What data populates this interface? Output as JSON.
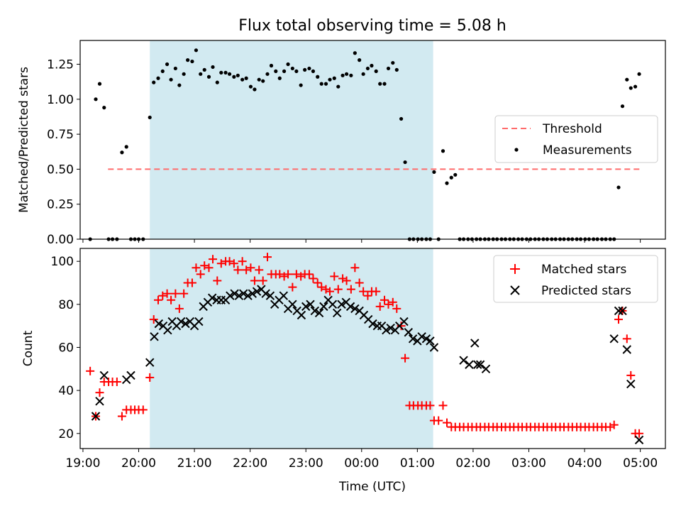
{
  "chart_data": [
    {
      "type": "scatter",
      "title": "Flux total observing time = 5.08 h",
      "xlabel": "",
      "ylabel": "Matched/Predicted stars",
      "ylim": [
        0,
        1.42
      ],
      "xlim": [
        18.95,
        29.45
      ],
      "yticks": [
        0.0,
        0.25,
        0.5,
        0.75,
        1.0,
        1.25
      ],
      "ytick_labels": [
        "0.00",
        "0.25",
        "0.50",
        "0.75",
        "1.00",
        "1.25"
      ],
      "shaded_region": {
        "start": 20.2,
        "end": 25.283,
        "color": "#add8e6"
      },
      "legend": {
        "position": "center-right",
        "entries": [
          "Threshold",
          "Measurements"
        ]
      },
      "threshold": {
        "name": "Threshold",
        "value": 0.5,
        "x_start": 19.45,
        "x_end": 29.0,
        "color": "#ff6b6b"
      },
      "series": [
        {
          "name": "Measurements",
          "color": "#000000",
          "x": [
            19.13,
            19.23,
            19.3,
            19.38,
            19.46,
            19.53,
            19.61,
            19.7,
            19.78,
            19.86,
            19.93,
            20.0,
            20.08,
            20.2,
            20.27,
            20.35,
            20.43,
            20.51,
            20.58,
            20.66,
            20.73,
            20.81,
            20.88,
            20.96,
            21.03,
            21.11,
            21.18,
            21.26,
            21.33,
            21.41,
            21.48,
            21.56,
            21.63,
            21.71,
            21.78,
            21.86,
            21.93,
            22.01,
            22.08,
            22.16,
            22.23,
            22.31,
            22.38,
            22.46,
            22.53,
            22.61,
            22.68,
            22.76,
            22.83,
            22.91,
            22.98,
            23.06,
            23.13,
            23.21,
            23.28,
            23.36,
            23.43,
            23.51,
            23.58,
            23.66,
            23.73,
            23.81,
            23.88,
            23.96,
            24.03,
            24.11,
            24.18,
            24.26,
            24.33,
            24.41,
            24.48,
            24.56,
            24.63,
            24.71,
            24.78,
            24.86,
            24.93,
            25.01,
            25.08,
            25.16,
            25.23,
            25.3,
            25.38,
            25.46,
            25.53,
            25.61,
            25.68,
            25.76,
            25.83,
            25.91,
            25.98,
            26.06,
            26.13,
            26.21,
            26.28,
            26.36,
            26.43,
            26.51,
            26.58,
            26.66,
            26.73,
            26.81,
            26.88,
            26.96,
            27.03,
            27.11,
            27.18,
            27.26,
            27.33,
            27.41,
            27.48,
            27.56,
            27.63,
            27.71,
            27.78,
            27.86,
            27.93,
            28.01,
            28.08,
            28.16,
            28.23,
            28.31,
            28.38,
            28.46,
            28.53,
            28.61,
            28.68,
            28.76,
            28.83,
            28.91,
            28.98
          ],
          "y": [
            0.0,
            1.0,
            1.11,
            0.94,
            0.0,
            0.0,
            0.0,
            0.62,
            0.66,
            0.0,
            0.0,
            0.0,
            0.0,
            0.87,
            1.12,
            1.15,
            1.2,
            1.25,
            1.14,
            1.22,
            1.1,
            1.18,
            1.28,
            1.27,
            1.35,
            1.18,
            1.21,
            1.16,
            1.23,
            1.12,
            1.19,
            1.19,
            1.18,
            1.16,
            1.17,
            1.14,
            1.15,
            1.09,
            1.07,
            1.14,
            1.13,
            1.18,
            1.24,
            1.2,
            1.15,
            1.2,
            1.25,
            1.22,
            1.2,
            1.1,
            1.21,
            1.22,
            1.2,
            1.16,
            1.11,
            1.11,
            1.14,
            1.15,
            1.09,
            1.17,
            1.18,
            1.17,
            1.33,
            1.28,
            1.18,
            1.22,
            1.24,
            1.2,
            1.11,
            1.11,
            1.22,
            1.26,
            1.21,
            0.86,
            0.55,
            0.0,
            0.0,
            0.0,
            0.0,
            0.0,
            0.0,
            0.48,
            0.0,
            0.63,
            0.4,
            0.44,
            0.46,
            0.0,
            0.0,
            0.0,
            0.0,
            0.0,
            0.0,
            0.0,
            0.0,
            0.0,
            0.0,
            0.0,
            0.0,
            0.0,
            0.0,
            0.0,
            0.0,
            0.0,
            0.0,
            0.0,
            0.0,
            0.0,
            0.0,
            0.0,
            0.0,
            0.0,
            0.0,
            0.0,
            0.0,
            0.0,
            0.0,
            0.0,
            0.0,
            0.0,
            0.0,
            0.0,
            0.0,
            0.0,
            0.0,
            0.37,
            0.95,
            1.14,
            1.08,
            1.09,
            1.18
          ]
        }
      ]
    },
    {
      "type": "scatter",
      "title": "",
      "xlabel": "Time (UTC)",
      "ylabel": "Count",
      "ylim": [
        13,
        106
      ],
      "xlim": [
        18.95,
        29.45
      ],
      "yticks": [
        20,
        40,
        60,
        80,
        100
      ],
      "ytick_labels": [
        "20",
        "40",
        "60",
        "80",
        "100"
      ],
      "xticks": [
        19,
        20,
        21,
        22,
        23,
        24,
        25,
        26,
        27,
        28,
        29
      ],
      "xtick_labels": [
        "19:00",
        "20:00",
        "21:00",
        "22:00",
        "23:00",
        "00:00",
        "01:00",
        "02:00",
        "03:00",
        "04:00",
        "05:00"
      ],
      "shaded_region": {
        "start": 20.2,
        "end": 25.283,
        "color": "#add8e6"
      },
      "legend": {
        "position": "top-right",
        "entries": [
          "Matched stars",
          "Predicted stars"
        ]
      },
      "series": [
        {
          "name": "Matched stars",
          "marker": "+",
          "color": "#ff0000",
          "x": [
            19.13,
            19.23,
            19.3,
            19.38,
            19.46,
            19.53,
            19.61,
            19.7,
            19.78,
            19.86,
            19.93,
            20.0,
            20.08,
            20.2,
            20.27,
            20.35,
            20.43,
            20.51,
            20.58,
            20.66,
            20.73,
            20.81,
            20.88,
            20.96,
            21.03,
            21.11,
            21.18,
            21.26,
            21.33,
            21.41,
            21.48,
            21.56,
            21.63,
            21.71,
            21.78,
            21.86,
            21.93,
            22.01,
            22.08,
            22.16,
            22.23,
            22.31,
            22.38,
            22.46,
            22.53,
            22.61,
            22.68,
            22.76,
            22.83,
            22.91,
            22.98,
            23.06,
            23.13,
            23.21,
            23.28,
            23.36,
            23.43,
            23.51,
            23.58,
            23.66,
            23.73,
            23.81,
            23.88,
            23.96,
            24.03,
            24.11,
            24.18,
            24.26,
            24.33,
            24.41,
            24.48,
            24.56,
            24.63,
            24.71,
            24.78,
            24.86,
            24.93,
            25.01,
            25.08,
            25.16,
            25.23,
            25.3,
            25.38,
            25.46,
            25.53,
            25.61,
            25.68,
            25.76,
            25.83,
            25.91,
            25.98,
            26.06,
            26.13,
            26.21,
            26.28,
            26.36,
            26.43,
            26.51,
            26.58,
            26.66,
            26.73,
            26.81,
            26.88,
            26.96,
            27.03,
            27.11,
            27.18,
            27.26,
            27.33,
            27.41,
            27.48,
            27.56,
            27.63,
            27.71,
            27.78,
            27.86,
            27.93,
            28.01,
            28.08,
            28.16,
            28.23,
            28.31,
            28.38,
            28.46,
            28.53,
            28.61,
            28.68,
            28.76,
            28.83,
            28.91,
            28.98
          ],
          "y": [
            49,
            28,
            39,
            44,
            44,
            44,
            44,
            28,
            31,
            31,
            31,
            31,
            31,
            46,
            73,
            82,
            84,
            85,
            82,
            85,
            78,
            85,
            90,
            90,
            97,
            94,
            98,
            97,
            101,
            91,
            99,
            100,
            100,
            99,
            96,
            100,
            96,
            97,
            91,
            96,
            91,
            102,
            94,
            94,
            94,
            93,
            94,
            88,
            94,
            93,
            94,
            94,
            92,
            90,
            88,
            87,
            86,
            93,
            87,
            92,
            91,
            87,
            97,
            90,
            86,
            84,
            86,
            86,
            79,
            82,
            80,
            81,
            78,
            70,
            55,
            33,
            33,
            33,
            33,
            33,
            33,
            26,
            26,
            33,
            25,
            23,
            23,
            23,
            23,
            23,
            23,
            23,
            23,
            23,
            23,
            23,
            23,
            23,
            23,
            23,
            23,
            23,
            23,
            23,
            23,
            23,
            23,
            23,
            23,
            23,
            23,
            23,
            23,
            23,
            23,
            23,
            23,
            23,
            23,
            23,
            23,
            23,
            23,
            23,
            24,
            73,
            77,
            64,
            47,
            20,
            20
          ]
        },
        {
          "name": "Predicted stars",
          "marker": "x",
          "color": "#000000",
          "x": [
            19.23,
            19.3,
            19.38,
            19.78,
            19.86,
            20.2,
            20.28,
            20.36,
            20.44,
            20.52,
            20.6,
            20.68,
            20.76,
            20.84,
            20.92,
            21.0,
            21.08,
            21.16,
            21.24,
            21.32,
            21.4,
            21.48,
            21.56,
            21.64,
            21.72,
            21.8,
            21.88,
            21.96,
            22.04,
            22.12,
            22.2,
            22.28,
            22.36,
            22.44,
            22.52,
            22.6,
            22.68,
            22.76,
            22.84,
            22.92,
            23.0,
            23.08,
            23.16,
            23.24,
            23.32,
            23.4,
            23.48,
            23.56,
            23.64,
            23.72,
            23.8,
            23.88,
            23.96,
            24.04,
            24.12,
            24.2,
            24.28,
            24.36,
            24.44,
            24.52,
            24.6,
            24.68,
            24.76,
            24.84,
            24.92,
            25.0,
            25.08,
            25.16,
            25.23,
            25.3,
            25.83,
            25.93,
            26.03,
            26.08,
            26.13,
            26.23,
            28.53,
            28.61,
            28.68,
            28.76,
            28.83,
            28.98
          ],
          "y": [
            28,
            35,
            47,
            45,
            47,
            53,
            65,
            71,
            70,
            68,
            72,
            70,
            72,
            71,
            72,
            70,
            72,
            79,
            81,
            83,
            82,
            82,
            82,
            84,
            85,
            84,
            85,
            84,
            85,
            86,
            87,
            85,
            84,
            80,
            82,
            84,
            78,
            80,
            77,
            75,
            79,
            80,
            77,
            76,
            79,
            82,
            80,
            76,
            80,
            81,
            79,
            78,
            77,
            75,
            73,
            71,
            70,
            70,
            68,
            69,
            68,
            70,
            72,
            67,
            64,
            63,
            65,
            64,
            63,
            60,
            54,
            52,
            62,
            52,
            52,
            50,
            64,
            77,
            77,
            59,
            43,
            17
          ]
        }
      ]
    }
  ]
}
